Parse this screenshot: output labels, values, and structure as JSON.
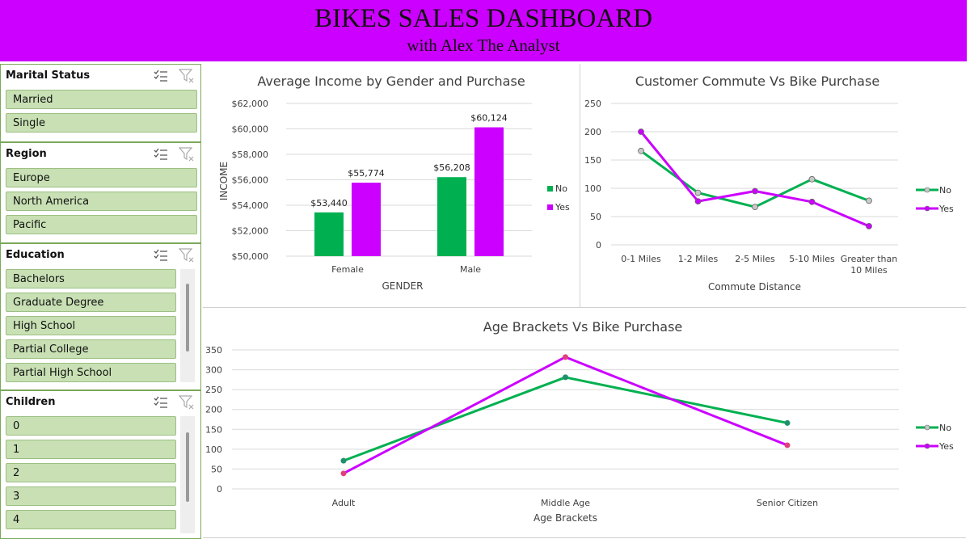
{
  "banner": {
    "title": "BIKES SALES DASHBOARD",
    "subtitle": "with Alex The Analyst"
  },
  "colors": {
    "banner": "#cc00ff",
    "no": "#00b050",
    "yes": "#cc00ff",
    "slicer_item": "#c8e0b4"
  },
  "slicers": [
    {
      "title": "Marital Status",
      "items": [
        "Married",
        "Single"
      ]
    },
    {
      "title": "Region",
      "items": [
        "Europe",
        "North America",
        "Pacific"
      ]
    },
    {
      "title": "Education",
      "items": [
        "Bachelors",
        "Graduate Degree",
        "High School",
        "Partial College",
        "Partial High School"
      ]
    },
    {
      "title": "Children",
      "items": [
        "0",
        "1",
        "2",
        "3",
        "4"
      ]
    }
  ],
  "chart_data": [
    {
      "type": "bar",
      "title": "Average Income by Gender and Purchase",
      "xlabel": "GENDER",
      "ylabel": "INCOME",
      "categories": [
        "Female",
        "Male"
      ],
      "series": [
        {
          "name": "No",
          "values": [
            53440,
            56208
          ],
          "labels": [
            "$53,440",
            "$56,208"
          ]
        },
        {
          "name": "Yes",
          "values": [
            55774,
            60124
          ],
          "labels": [
            "$55,774",
            "$60,124"
          ]
        }
      ],
      "ylim": [
        50000,
        62000
      ],
      "yticks": [
        "$50,000",
        "$52,000",
        "$54,000",
        "$56,000",
        "$58,000",
        "$60,000",
        "$62,000"
      ],
      "legend": "right"
    },
    {
      "type": "line",
      "title": "Customer Commute Vs Bike Purchase",
      "xlabel": "Commute Distance",
      "ylabel": "",
      "categories": [
        "0-1 Miles",
        "1-2 Miles",
        "2-5 Miles",
        "5-10 Miles",
        "Greater than 10 Miles"
      ],
      "series": [
        {
          "name": "No",
          "values": [
            166,
            92,
            67,
            116,
            78
          ]
        },
        {
          "name": "Yes",
          "values": [
            200,
            77,
            95,
            76,
            33
          ]
        }
      ],
      "ylim": [
        0,
        250
      ],
      "yticks": [
        "0",
        "50",
        "100",
        "150",
        "200",
        "250"
      ],
      "legend": "right"
    },
    {
      "type": "line",
      "title": "Age Brackets Vs Bike Purchase",
      "xlabel": "Age Brackets",
      "ylabel": "",
      "categories": [
        "Adult",
        "Middle Age",
        "Senior Citizen"
      ],
      "series": [
        {
          "name": "No",
          "values": [
            71,
            281,
            166
          ]
        },
        {
          "name": "Yes",
          "values": [
            39,
            332,
            110
          ]
        }
      ],
      "ylim": [
        0,
        350
      ],
      "yticks": [
        "0",
        "50",
        "100",
        "150",
        "200",
        "250",
        "300",
        "350"
      ],
      "legend": "right"
    }
  ]
}
